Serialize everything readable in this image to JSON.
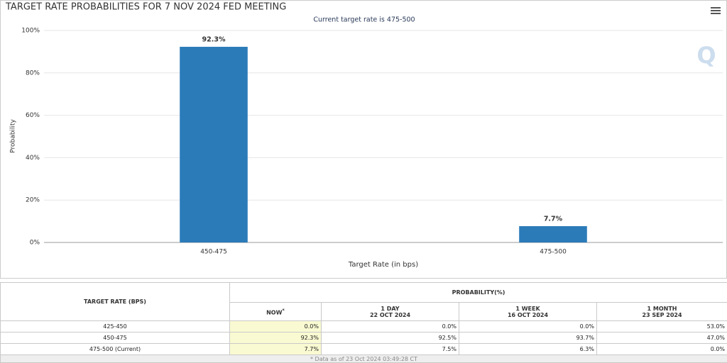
{
  "chart_data": {
    "type": "bar",
    "title": "TARGET RATE PROBABILITIES FOR 7 NOV 2024 FED MEETING",
    "subtitle": "Current target rate is 475-500",
    "x_label": "Target Rate (in bps)",
    "y_label": "Probability",
    "categories": [
      "450-475",
      "475-500"
    ],
    "values": [
      92.3,
      7.7
    ],
    "value_labels": [
      "92.3%",
      "7.7%"
    ],
    "color": "#2b7bb9",
    "ylim": [
      0,
      100
    ],
    "yticks": [
      {
        "value": 0,
        "label": "0%"
      },
      {
        "value": 20,
        "label": "20%"
      },
      {
        "value": 40,
        "label": "40%"
      },
      {
        "value": 60,
        "label": "60%"
      },
      {
        "value": 80,
        "label": "80%"
      },
      {
        "value": 100,
        "label": "100%"
      }
    ],
    "grid": true
  },
  "table": {
    "header": {
      "rate": "TARGET RATE (BPS)",
      "probability": "PROBABILITY(%)"
    },
    "columns": [
      {
        "label": "NOW",
        "note": "*"
      },
      {
        "label": "1 DAY",
        "date": "22 OCT 2024"
      },
      {
        "label": "1 WEEK",
        "date": "16 OCT 2024"
      },
      {
        "label": "1 MONTH",
        "date": "23 SEP 2024"
      }
    ],
    "rows": [
      [
        "425-450",
        "0.0%",
        "0.0%",
        "0.0%",
        "53.0%"
      ],
      [
        "450-475",
        "92.3%",
        "92.5%",
        "93.7%",
        "47.0%"
      ],
      [
        "475-500 (Current)",
        "7.7%",
        "7.5%",
        "6.3%",
        "0.0%"
      ]
    ],
    "footnote": "* Data as of 23 Oct 2024 03:49:28 CT"
  }
}
